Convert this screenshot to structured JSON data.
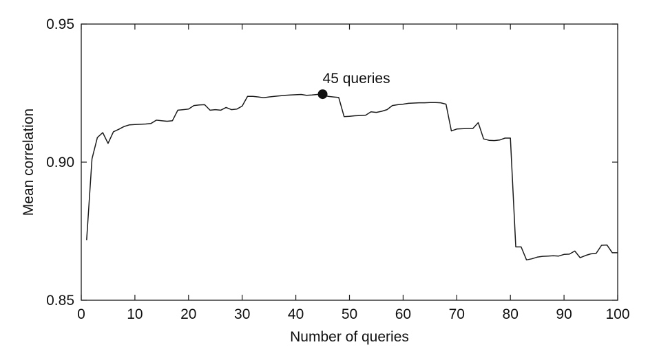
{
  "chart_data": {
    "type": "line",
    "xlabel": "Number of queries",
    "ylabel": "Mean correlation",
    "xlim": [
      0,
      100
    ],
    "ylim": [
      0.85,
      0.95
    ],
    "xticks": [
      0,
      10,
      20,
      30,
      40,
      50,
      60,
      70,
      80,
      90,
      100
    ],
    "yticks": [
      0.85,
      0.9,
      0.95
    ],
    "xtick_labels": [
      "0",
      "10",
      "20",
      "30",
      "40",
      "50",
      "60",
      "70",
      "80",
      "90",
      "100"
    ],
    "ytick_labels": [
      "0.85",
      "0.90",
      "0.95"
    ],
    "grid": false,
    "line_color": "#1a1a1a",
    "series": [
      {
        "x": [
          1,
          2,
          3,
          4,
          5,
          6,
          7,
          8,
          9,
          10,
          11,
          12,
          13,
          14,
          15,
          16,
          17,
          18,
          19,
          20,
          21,
          22,
          23,
          24,
          25,
          26,
          27,
          28,
          29,
          30,
          31,
          32,
          33,
          34,
          35,
          36,
          37,
          38,
          39,
          40,
          41,
          42,
          43,
          44,
          45,
          46,
          47,
          48,
          49,
          50,
          51,
          52,
          53,
          54,
          55,
          56,
          57,
          58,
          59,
          60,
          61,
          62,
          63,
          64,
          65,
          66,
          67,
          68,
          69,
          70,
          71,
          72,
          73,
          74,
          75,
          76,
          77,
          78,
          79,
          80,
          81,
          82,
          83,
          84,
          85,
          86,
          87,
          88,
          89,
          90,
          91,
          92,
          93,
          94,
          95,
          96,
          97,
          98,
          99,
          100
        ],
        "y": [
          0.8718,
          0.9012,
          0.9089,
          0.9107,
          0.9068,
          0.911,
          0.9119,
          0.9129,
          0.9135,
          0.9136,
          0.9137,
          0.9138,
          0.914,
          0.9152,
          0.915,
          0.9148,
          0.915,
          0.9188,
          0.919,
          0.9192,
          0.9205,
          0.9207,
          0.9208,
          0.9188,
          0.919,
          0.9188,
          0.9198,
          0.919,
          0.9192,
          0.9203,
          0.9238,
          0.9238,
          0.9236,
          0.9233,
          0.9236,
          0.9238,
          0.924,
          0.9242,
          0.9243,
          0.9244,
          0.9245,
          0.9242,
          0.9243,
          0.9245,
          0.9246,
          0.9238,
          0.9236,
          0.9234,
          0.9165,
          0.9166,
          0.9168,
          0.9169,
          0.917,
          0.9182,
          0.918,
          0.9184,
          0.919,
          0.9205,
          0.9208,
          0.921,
          0.9213,
          0.9214,
          0.9215,
          0.9215,
          0.9216,
          0.9216,
          0.9215,
          0.921,
          0.9113,
          0.912,
          0.9121,
          0.9122,
          0.9122,
          0.9143,
          0.9084,
          0.9079,
          0.9078,
          0.908,
          0.9087,
          0.9087,
          0.8693,
          0.8693,
          0.8646,
          0.865,
          0.8656,
          0.8659,
          0.866,
          0.8661,
          0.866,
          0.8666,
          0.8667,
          0.8678,
          0.8654,
          0.8662,
          0.8668,
          0.867,
          0.8699,
          0.87,
          0.8672,
          0.8672
        ]
      }
    ],
    "annotations": [
      {
        "text": "45 queries",
        "x": 45,
        "y": 0.9246
      }
    ]
  }
}
